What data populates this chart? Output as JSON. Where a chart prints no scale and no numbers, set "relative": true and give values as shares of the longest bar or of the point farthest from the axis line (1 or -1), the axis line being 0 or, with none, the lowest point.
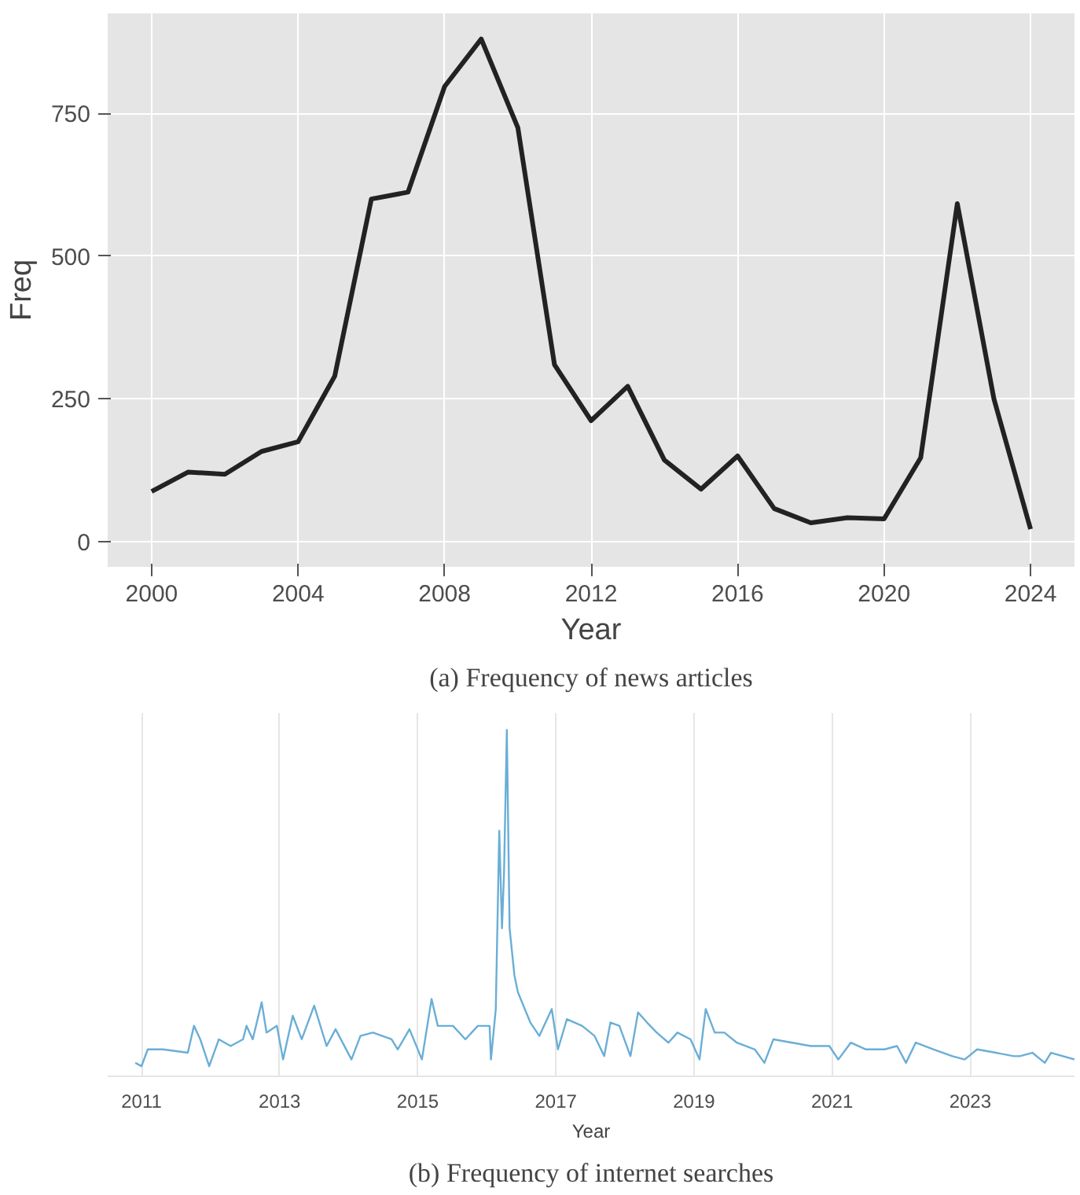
{
  "chart_data": [
    {
      "type": "line",
      "xlabel": "Year",
      "ylabel": "Freq",
      "annotations": [
        "(a) Frequency of news articles"
      ],
      "x": [
        2000,
        2001,
        2002,
        2003,
        2004,
        2005,
        2006,
        2007,
        2008,
        2009,
        2010,
        2011,
        2012,
        2013,
        2014,
        2015,
        2016,
        2017,
        2018,
        2019,
        2020,
        2021,
        2022,
        2023,
        2024
      ],
      "series": [
        {
          "color": "#222222",
          "values": [
            88,
            122,
            118,
            158,
            175,
            290,
            600,
            612,
            797,
            880,
            725,
            310,
            212,
            272,
            143,
            92,
            150,
            58,
            33,
            42,
            40,
            147,
            592,
            250,
            22
          ]
        }
      ],
      "xlim": [
        1998.8,
        2025.2
      ],
      "ylim": [
        -44,
        925
      ],
      "xticks": [
        2000,
        2004,
        2008,
        2012,
        2016,
        2020,
        2024
      ],
      "yticks": [
        0,
        250,
        500,
        750
      ],
      "grid": true,
      "line_style": "solid"
    },
    {
      "type": "line",
      "xlabel": "Year",
      "annotations": [
        "(b) Frequency of internet searches"
      ],
      "relative": true,
      "x": [
        2010.91,
        2011.0,
        2011.09,
        2011.31,
        2011.67,
        2011.76,
        2011.85,
        2011.98,
        2012.12,
        2012.29,
        2012.47,
        2012.52,
        2012.61,
        2012.74,
        2012.81,
        2012.96,
        2013.05,
        2013.19,
        2013.32,
        2013.5,
        2013.68,
        2013.81,
        2014.04,
        2014.17,
        2014.35,
        2014.62,
        2014.71,
        2014.88,
        2015.06,
        2015.2,
        2015.29,
        2015.51,
        2015.69,
        2015.87,
        2016.04,
        2016.06,
        2016.13,
        2016.18,
        2016.22,
        2016.25,
        2016.29,
        2016.33,
        2016.4,
        2016.45,
        2016.63,
        2016.76,
        2016.94,
        2017.03,
        2017.16,
        2017.38,
        2017.56,
        2017.7,
        2017.79,
        2017.92,
        2018.08,
        2018.19,
        2018.32,
        2018.46,
        2018.63,
        2018.76,
        2018.95,
        2019.08,
        2019.17,
        2019.3,
        2019.44,
        2019.62,
        2019.88,
        2020.02,
        2020.15,
        2020.42,
        2020.69,
        2020.96,
        2021.09,
        2021.27,
        2021.49,
        2021.76,
        2021.94,
        2022.07,
        2022.21,
        2022.47,
        2022.74,
        2022.92,
        2023.1,
        2023.37,
        2023.63,
        2023.72,
        2023.9,
        2024.08,
        2024.17,
        2024.51
      ],
      "series": [
        {
          "color": "#6aaed6",
          "values": [
            0.01,
            0,
            0.05,
            0.05,
            0.04,
            0.12,
            0.08,
            0,
            0.08,
            0.06,
            0.08,
            0.12,
            0.08,
            0.19,
            0.1,
            0.12,
            0.02,
            0.15,
            0.08,
            0.18,
            0.06,
            0.11,
            0.02,
            0.09,
            0.1,
            0.08,
            0.05,
            0.11,
            0.02,
            0.2,
            0.12,
            0.12,
            0.08,
            0.12,
            0.12,
            0.02,
            0.17,
            0.7,
            0.41,
            0.58,
            1.0,
            0.41,
            0.27,
            0.22,
            0.13,
            0.09,
            0.17,
            0.05,
            0.14,
            0.12,
            0.09,
            0.03,
            0.13,
            0.12,
            0.03,
            0.16,
            0.13,
            0.1,
            0.07,
            0.1,
            0.08,
            0.02,
            0.17,
            0.1,
            0.1,
            0.07,
            0.05,
            0.01,
            0.08,
            0.07,
            0.06,
            0.06,
            0.02,
            0.07,
            0.05,
            0.05,
            0.06,
            0.01,
            0.07,
            0.05,
            0.03,
            0.02,
            0.05,
            0.04,
            0.03,
            0.03,
            0.04,
            0.01,
            0.04,
            0.02
          ]
        }
      ],
      "xlim": [
        2010.51,
        2024.51
      ],
      "xticks": [
        2011,
        2013,
        2015,
        2017,
        2019,
        2021,
        2023
      ],
      "grid": "x",
      "line_style": "solid"
    }
  ]
}
